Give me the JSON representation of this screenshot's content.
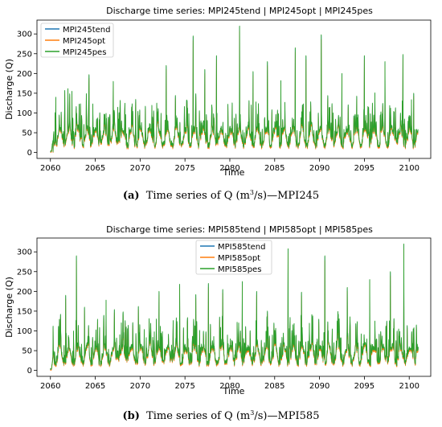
{
  "chart_data": [
    {
      "type": "line",
      "title": "Discharge time series: MPI245tend | MPI245opt | MPI245pes",
      "xlabel": "Time",
      "ylabel": "Discharge (Q)",
      "xlim": [
        2058.5,
        2102.4
      ],
      "ylim": [
        -15,
        335
      ],
      "xticks": [
        2060,
        2065,
        2070,
        2075,
        2080,
        2085,
        2090,
        2095,
        2100
      ],
      "yticks": [
        0,
        50,
        100,
        150,
        200,
        250,
        300
      ],
      "legend_position": "upper-left",
      "grid": false,
      "x_range": [
        2060.0,
        2101.0
      ],
      "series": [
        {
          "name": "MPI245tend",
          "color": "#1f77b4"
        },
        {
          "name": "MPI245opt",
          "color": "#ff7f0e"
        },
        {
          "name": "MPI245pes",
          "color": "#2ca02c"
        }
      ],
      "peaks": [
        {
          "x": 2060.3,
          "y": 2
        },
        {
          "x": 2060.6,
          "y": 140
        },
        {
          "x": 2061.6,
          "y": 157
        },
        {
          "x": 2062.4,
          "y": 155
        },
        {
          "x": 2064.3,
          "y": 197
        },
        {
          "x": 2067.0,
          "y": 180
        },
        {
          "x": 2072.9,
          "y": 220
        },
        {
          "x": 2075.9,
          "y": 295
        },
        {
          "x": 2077.2,
          "y": 210
        },
        {
          "x": 2078.5,
          "y": 245
        },
        {
          "x": 2081.1,
          "y": 320
        },
        {
          "x": 2082.6,
          "y": 205
        },
        {
          "x": 2084.2,
          "y": 230
        },
        {
          "x": 2085.7,
          "y": 182
        },
        {
          "x": 2087.3,
          "y": 265
        },
        {
          "x": 2088.5,
          "y": 245
        },
        {
          "x": 2090.2,
          "y": 298
        },
        {
          "x": 2092.5,
          "y": 200
        },
        {
          "x": 2095.0,
          "y": 245
        },
        {
          "x": 2097.3,
          "y": 230
        },
        {
          "x": 2099.3,
          "y": 248
        },
        {
          "x": 2100.5,
          "y": 150
        }
      ],
      "caption": {
        "label": "(a)",
        "text": "Time series of Q (m",
        "sup": "3",
        "text2": "/s)—MPI245"
      }
    },
    {
      "type": "line",
      "title": "Discharge time series: MPI585tend | MPI585opt | MPI585pes",
      "xlabel": "Time",
      "ylabel": "Discharge (Q)",
      "xlim": [
        2058.5,
        2102.4
      ],
      "ylim": [
        -15,
        335
      ],
      "xticks": [
        2060,
        2065,
        2070,
        2075,
        2080,
        2085,
        2090,
        2095,
        2100
      ],
      "yticks": [
        0,
        50,
        100,
        150,
        200,
        250,
        300
      ],
      "legend_position": "upper-center",
      "grid": false,
      "x_range": [
        2060.0,
        2101.0
      ],
      "series": [
        {
          "name": "MPI585tend",
          "color": "#1f77b4"
        },
        {
          "name": "MPI585opt",
          "color": "#ff7f0e"
        },
        {
          "name": "MPI585pes",
          "color": "#2ca02c"
        }
      ],
      "peaks": [
        {
          "x": 2060.3,
          "y": 112
        },
        {
          "x": 2061.7,
          "y": 190
        },
        {
          "x": 2062.9,
          "y": 290
        },
        {
          "x": 2063.8,
          "y": 160
        },
        {
          "x": 2066.2,
          "y": 178
        },
        {
          "x": 2069.8,
          "y": 162
        },
        {
          "x": 2072.1,
          "y": 200
        },
        {
          "x": 2074.4,
          "y": 218
        },
        {
          "x": 2076.2,
          "y": 192
        },
        {
          "x": 2077.6,
          "y": 220
        },
        {
          "x": 2079.2,
          "y": 205
        },
        {
          "x": 2081.4,
          "y": 225
        },
        {
          "x": 2083.0,
          "y": 200
        },
        {
          "x": 2086.5,
          "y": 308
        },
        {
          "x": 2088.0,
          "y": 198
        },
        {
          "x": 2090.6,
          "y": 290
        },
        {
          "x": 2093.1,
          "y": 210
        },
        {
          "x": 2095.6,
          "y": 230
        },
        {
          "x": 2097.9,
          "y": 250
        },
        {
          "x": 2099.4,
          "y": 320
        },
        {
          "x": 2100.8,
          "y": 115
        }
      ],
      "caption": {
        "label": "(b)",
        "text": "Time series of Q (m",
        "sup": "3",
        "text2": "/s)—MPI585"
      }
    }
  ]
}
